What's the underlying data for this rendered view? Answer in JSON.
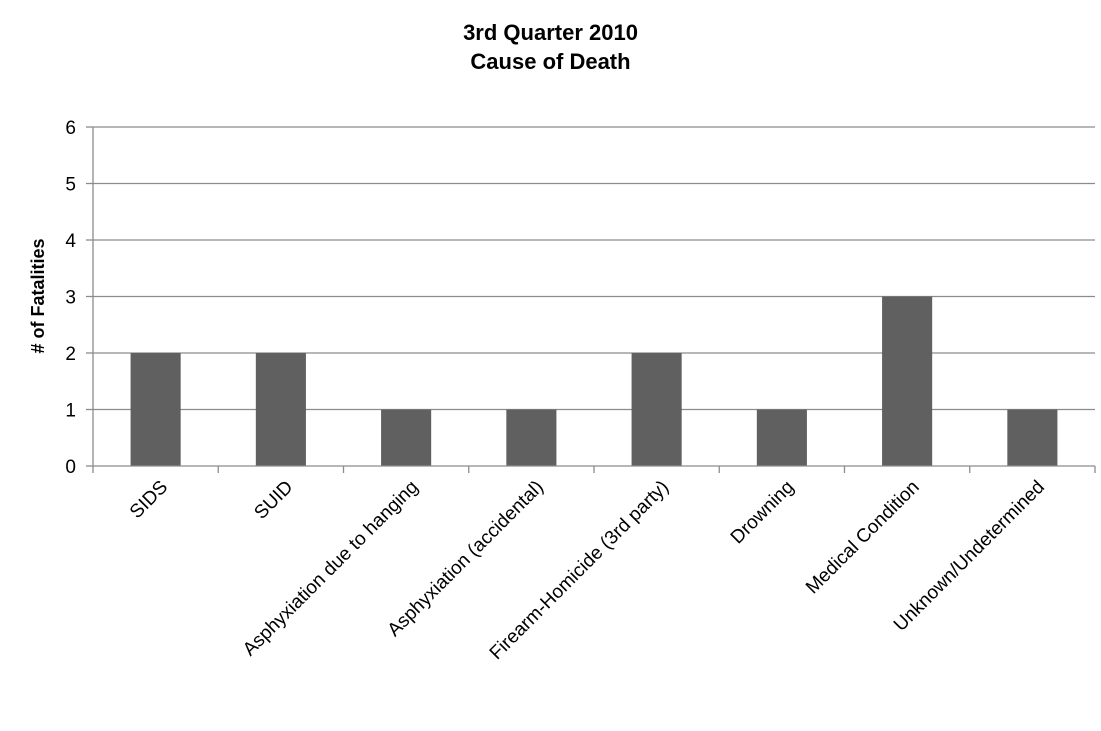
{
  "chart_data": {
    "type": "bar",
    "title": [
      "3rd Quarter 2010",
      "Cause of Death"
    ],
    "xlabel": "",
    "ylabel": "# of Fatalities",
    "ylim": [
      0,
      6
    ],
    "yticks": [
      0,
      1,
      2,
      3,
      4,
      5,
      6
    ],
    "grid": true,
    "legend": "none",
    "categories": [
      "SIDS",
      "SUID",
      "Asphyxiation due to hanging",
      "Asphyxiation (accidental)",
      "Firearm-Homicide (3rd party)",
      "Drowning",
      "Medical Condition",
      "Unknown/Undetermined"
    ],
    "values": [
      2,
      2,
      1,
      1,
      2,
      1,
      3,
      1
    ],
    "bar_color": "#606060",
    "grid_color": "#8c8c8c"
  }
}
